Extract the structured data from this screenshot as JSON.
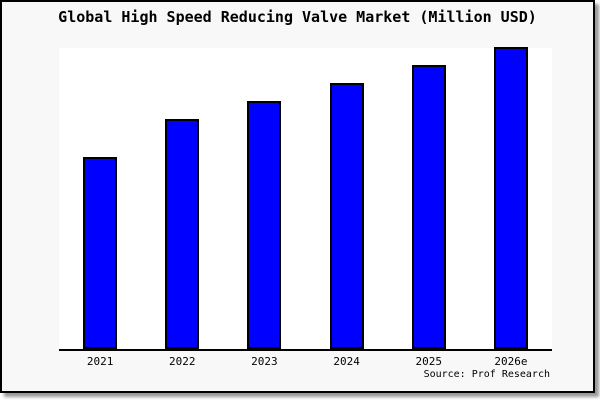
{
  "source": "Source: Prof Research",
  "colors": {
    "bar_fill": "#0000ff",
    "bar_border": "#000000",
    "frame_background": "#f8f8f8",
    "plot_background": "#ffffff",
    "frame_border": "#000000",
    "shadow": "#999999",
    "text": "#000000"
  },
  "chart_data": {
    "type": "bar",
    "title": "Global High Speed Reducing Valve Market (Million USD)",
    "categories": [
      "2021",
      "2022",
      "2023",
      "2024",
      "2025",
      "2026e"
    ],
    "values": [
      63,
      76,
      82,
      88,
      94,
      100
    ],
    "xlabel": "",
    "ylabel": "",
    "ylim": [
      0,
      100
    ],
    "value_note": "no y-axis ticks or data labels shown; values are bar heights normalized to 2026e = 100",
    "y_axis_visible": false,
    "grid": false,
    "legend_position": "none",
    "source": "Source: Prof Research"
  }
}
